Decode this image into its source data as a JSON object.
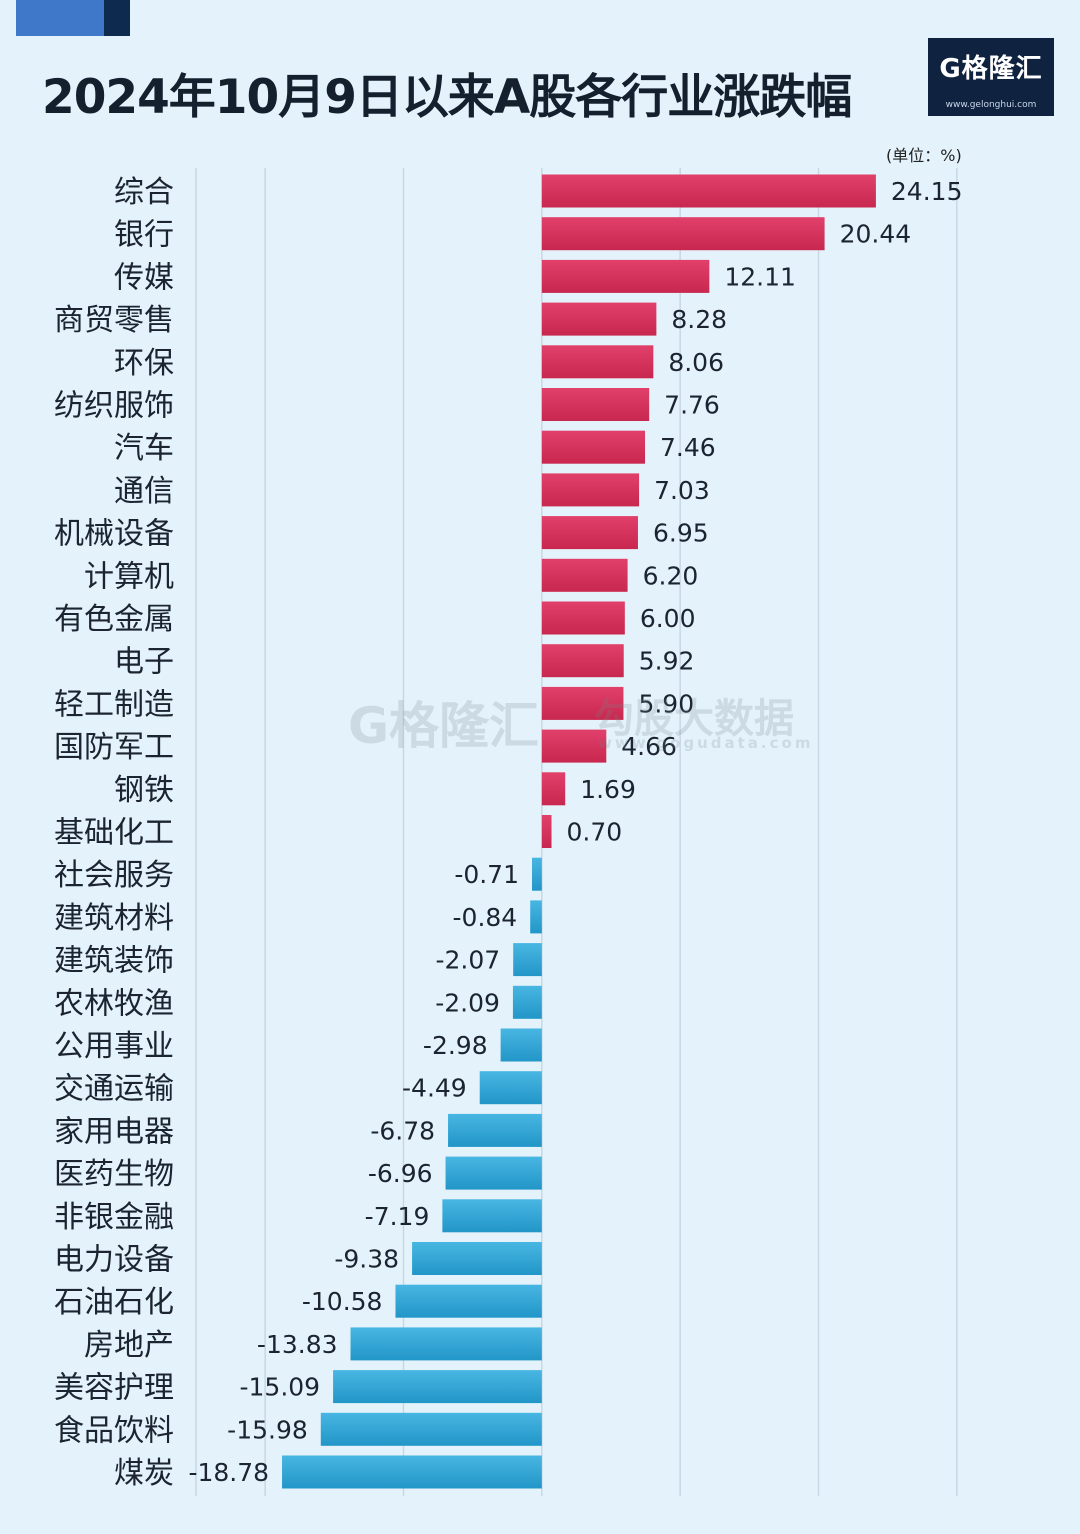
{
  "title": "2024年10月9日以来A股各行业涨跌幅",
  "logo": {
    "main": "G格隆汇",
    "sub": "www.gelonghui.com"
  },
  "watermark": {
    "left": "G格隆汇",
    "right": "勾股大数据",
    "url": "www.gogudata.com"
  },
  "colors": {
    "positive": "#d42f5a",
    "negative": "#2fa6d6",
    "background": "#e4f3fb"
  },
  "chart_data": {
    "type": "bar",
    "orientation": "horizontal",
    "unit_label": "(单位：%)",
    "xlim": [
      -25,
      35
    ],
    "grid": true,
    "categories": [
      "综合",
      "银行",
      "传媒",
      "商贸零售",
      "环保",
      "纺织服饰",
      "汽车",
      "通信",
      "机械设备",
      "计算机",
      "有色金属",
      "电子",
      "轻工制造",
      "国防军工",
      "钢铁",
      "基础化工",
      "社会服务",
      "建筑材料",
      "建筑装饰",
      "农林牧渔",
      "公用事业",
      "交通运输",
      "家用电器",
      "医药生物",
      "非银金融",
      "电力设备",
      "石油石化",
      "房地产",
      "美容护理",
      "食品饮料",
      "煤炭"
    ],
    "values": [
      24.15,
      20.44,
      12.11,
      8.28,
      8.06,
      7.76,
      7.46,
      7.03,
      6.95,
      6.2,
      6.0,
      5.92,
      5.9,
      4.66,
      1.69,
      0.7,
      -0.71,
      -0.84,
      -2.07,
      -2.09,
      -2.98,
      -4.49,
      -6.78,
      -6.96,
      -7.19,
      -9.38,
      -10.58,
      -13.83,
      -15.09,
      -15.98,
      -18.78
    ],
    "labels": [
      "24.15",
      "20.44",
      "12.11",
      "8.28",
      "8.06",
      "7.76",
      "7.46",
      "7.03",
      "6.95",
      "6.20",
      "6.00",
      "5.92",
      "5.90",
      "4.66",
      "1.69",
      "0.70",
      "-0.71",
      "-0.84",
      "-2.07",
      "-2.09",
      "-2.98",
      "-4.49",
      "-6.78",
      "-6.96",
      "-7.19",
      "-9.38",
      "-10.58",
      "-13.83",
      "-15.09",
      "-15.98",
      "-18.78"
    ]
  }
}
